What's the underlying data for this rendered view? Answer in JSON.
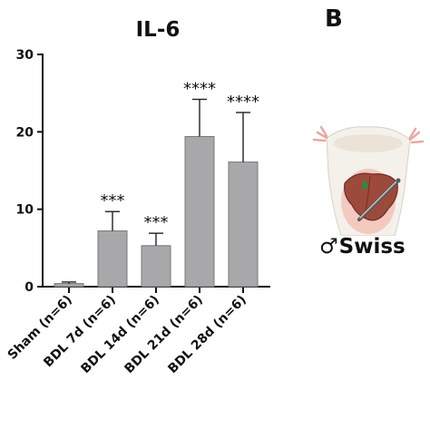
{
  "panel_label": "B",
  "model": {
    "sex_symbol": "♂",
    "strain": "Swiss"
  },
  "chart_data": {
    "type": "bar",
    "title": "IL-6",
    "xlabel": "",
    "ylabel": "",
    "ylim": [
      0,
      30
    ],
    "yticks": [
      0,
      10,
      20,
      30
    ],
    "categories": [
      "Sham (n=6)",
      "BDL 7d (n=6)",
      "BDL 14d (n=6)",
      "BDL 21d (n=6)",
      "BDL 28d (n=6)"
    ],
    "values": [
      0.4,
      7.2,
      5.3,
      19.4,
      16.1
    ],
    "errors": [
      0.2,
      2.5,
      1.6,
      4.8,
      6.4
    ],
    "significance": [
      "",
      "***",
      "***",
      "****",
      "****"
    ],
    "bar_color": "#a8a8ab",
    "grid": false,
    "legend": "none"
  }
}
